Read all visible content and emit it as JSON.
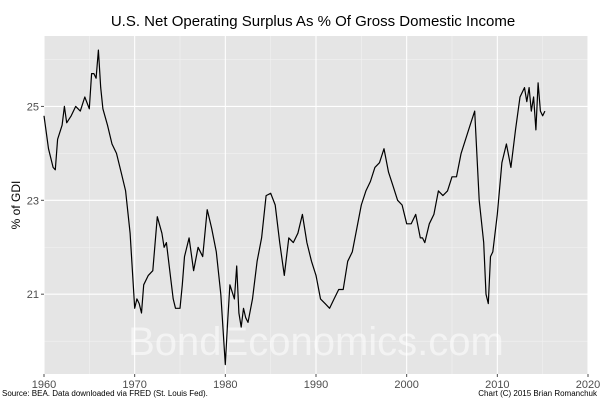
{
  "chart_data": {
    "type": "line",
    "title": "U.S. Net Operating Surplus As % Of Gross Domestic Income",
    "xlabel": "",
    "ylabel": "% of GDI",
    "xlim": [
      1960,
      2020
    ],
    "ylim": [
      19.3,
      26.5
    ],
    "x_ticks": [
      1960,
      1970,
      1980,
      1990,
      2000,
      2010,
      2020
    ],
    "y_ticks": [
      21,
      23,
      25
    ],
    "grid": true,
    "background": "#e5e5e5",
    "line_color": "#000000",
    "series": [
      {
        "x": [
          1960.0,
          1960.5,
          1961.0,
          1961.25,
          1961.5,
          1962.0,
          1962.25,
          1962.5,
          1963.0,
          1963.5,
          1964.0,
          1964.5,
          1965.0,
          1965.25,
          1965.5,
          1965.75,
          1966.0,
          1966.25,
          1966.5,
          1967.0,
          1967.5,
          1968.0,
          1968.5,
          1969.0,
          1969.5,
          1970.0,
          1970.25,
          1970.5,
          1970.75,
          1971.0,
          1971.5,
          1972.0,
          1972.5,
          1973.0,
          1973.25,
          1973.5,
          1974.0,
          1974.25,
          1974.5,
          1975.0,
          1975.25,
          1975.5,
          1976.0,
          1976.5,
          1977.0,
          1977.5,
          1978.0,
          1978.25,
          1978.5,
          1979.0,
          1979.5,
          1980.0,
          1980.25,
          1980.5,
          1981.0,
          1981.25,
          1981.5,
          1981.75,
          1982.0,
          1982.25,
          1982.5,
          1983.0,
          1983.5,
          1984.0,
          1984.5,
          1985.0,
          1985.5,
          1986.0,
          1986.5,
          1987.0,
          1987.5,
          1988.0,
          1988.5,
          1989.0,
          1989.5,
          1990.0,
          1990.5,
          1991.0,
          1991.5,
          1992.0,
          1992.5,
          1993.0,
          1993.5,
          1994.0,
          1994.5,
          1995.0,
          1995.5,
          1996.0,
          1996.5,
          1997.0,
          1997.5,
          1998.0,
          1998.5,
          1999.0,
          1999.5,
          2000.0,
          2000.5,
          2001.0,
          2001.5,
          2001.75,
          2002.0,
          2002.5,
          2003.0,
          2003.5,
          2004.0,
          2004.5,
          2005.0,
          2005.5,
          2006.0,
          2006.5,
          2007.0,
          2007.5,
          2008.0,
          2008.5,
          2008.75,
          2009.0,
          2009.25,
          2009.5,
          2010.0,
          2010.5,
          2011.0,
          2011.5,
          2012.0,
          2012.5,
          2013.0,
          2013.25,
          2013.5,
          2013.75,
          2014.0,
          2014.25,
          2014.5,
          2014.75,
          2015.0,
          2015.25
        ],
        "y": [
          24.8,
          24.1,
          23.7,
          23.65,
          24.3,
          24.6,
          25.0,
          24.65,
          24.8,
          25.0,
          24.9,
          25.2,
          24.95,
          25.7,
          25.7,
          25.6,
          26.2,
          25.4,
          24.95,
          24.6,
          24.2,
          24.0,
          23.6,
          23.2,
          22.3,
          20.7,
          20.9,
          20.8,
          20.6,
          21.2,
          21.4,
          21.5,
          22.65,
          22.3,
          22.0,
          22.1,
          21.3,
          20.9,
          20.7,
          20.7,
          21.2,
          21.8,
          22.2,
          21.5,
          22.0,
          21.8,
          22.8,
          22.6,
          22.4,
          21.9,
          21.0,
          19.5,
          20.4,
          21.2,
          20.9,
          21.6,
          20.6,
          20.3,
          20.7,
          20.5,
          20.4,
          20.9,
          21.7,
          22.2,
          23.1,
          23.15,
          22.9,
          22.1,
          21.4,
          22.2,
          22.1,
          22.3,
          22.7,
          22.1,
          21.7,
          21.4,
          20.9,
          20.8,
          20.7,
          20.9,
          21.1,
          21.1,
          21.7,
          21.9,
          22.4,
          22.9,
          23.2,
          23.4,
          23.7,
          23.8,
          24.1,
          23.6,
          23.3,
          23.0,
          22.9,
          22.5,
          22.5,
          22.7,
          22.2,
          22.2,
          22.1,
          22.5,
          22.7,
          23.2,
          23.1,
          23.2,
          23.5,
          23.5,
          24.0,
          24.3,
          24.6,
          24.9,
          23.0,
          22.1,
          21.0,
          20.8,
          21.8,
          21.9,
          22.7,
          23.8,
          24.2,
          23.7,
          24.5,
          25.2,
          25.4,
          25.1,
          25.4,
          24.9,
          25.2,
          24.5,
          25.5,
          24.9,
          24.8,
          24.9
        ]
      }
    ]
  },
  "watermark": "BondEconomics.com",
  "footnote_left": "Source: BEA. Data downloaded via FRED (St. Louis Fed).",
  "footnote_right": "Chart (C) 2015 Brian Romanchuk"
}
